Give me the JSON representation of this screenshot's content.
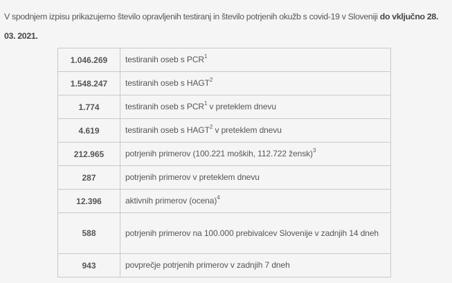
{
  "intro": {
    "text": "V spodnjem izpisu prikazujemo število opravljenih testiranj in število potrjenih okužb s covid-19 v Sloveniji ",
    "bold": "do vključno 28. 03. 2021."
  },
  "rows": [
    {
      "value": "1.046.269",
      "label": "testiranih oseb s PCR",
      "sup": "1",
      "rest": ""
    },
    {
      "value": "1.548.247",
      "label": "testiranih oseb s HAGT",
      "sup": "2",
      "rest": ""
    },
    {
      "value": "1.774",
      "label": "testiranih oseb s PCR",
      "sup": "1",
      "rest": " v preteklem dnevu"
    },
    {
      "value": "4.619",
      "label": "testiranih oseb s HAGT",
      "sup": "2",
      "rest": " v preteklem dnevu"
    },
    {
      "value": "212.965",
      "label": "potrjenih primerov  (100.221 moških, 112.722 žensk)",
      "sup": "3",
      "rest": ""
    },
    {
      "value": "287",
      "label": "potrjenih primerov v preteklem dnevu",
      "sup": "",
      "rest": ""
    },
    {
      "value": "12.396",
      "label": "aktivnih primerov (ocena)",
      "sup": "4",
      "rest": ""
    },
    {
      "value": "588",
      "label": "potrjenih primerov na 100.000 prebivalcev Slovenije v zadnjih 14 dneh",
      "sup": "",
      "rest": ""
    },
    {
      "value": "943",
      "label": "povprečje potrjenih primerov v zadnjih 7 dneh",
      "sup": "",
      "rest": ""
    }
  ]
}
